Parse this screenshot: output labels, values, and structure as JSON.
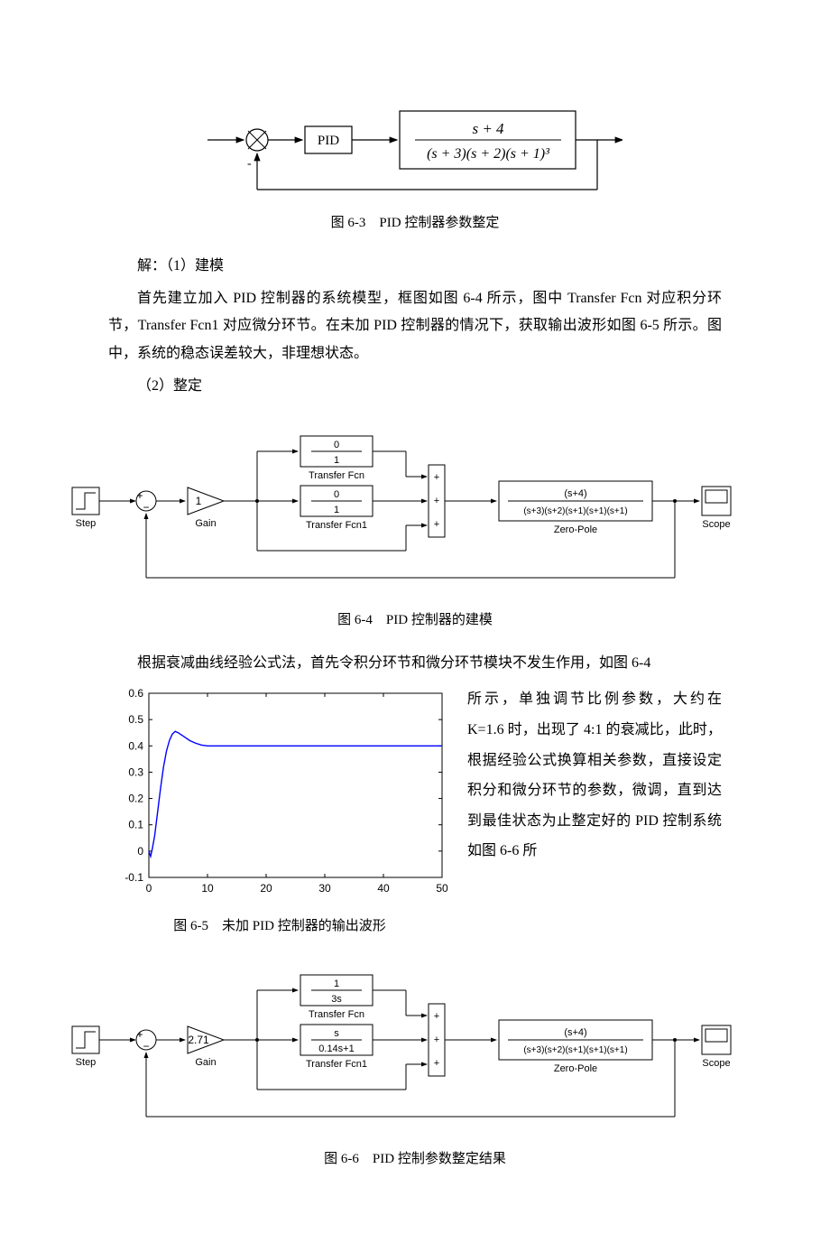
{
  "fig63": {
    "caption": "图 6-3　PID 控制器参数整定",
    "pid_label": "PID",
    "tf_num": "s + 4",
    "tf_den": "(s + 3)(s + 2)(s + 1)³",
    "minus": "-",
    "stroke": "#000000",
    "fill": "#ffffff"
  },
  "text": {
    "solve_header": "解：（1）建模",
    "p1": "首先建立加入 PID 控制器的系统模型，框图如图 6-4 所示，图中 Transfer Fcn 对应积分环节，Transfer Fcn1 对应微分环节。在未加 PID 控制器的情况下，获取输出波形如图 6-5 所示。图中，系统的稳态误差较大，非理想状态。",
    "step2": "（2）整定",
    "p2": "根据衰减曲线经验公式法，首先令积分环节和微分环节模块不发生作用，如图 6-4",
    "side": "所示，单独调节比例参数，大约在 K=1.6 时，出现了 4:1 的衰减比，此时，根据经验公式换算相关参数，直接设定积分和微分环节的参数，微调，直到达到最佳状态为止整定好的 PID 控制系统如图 6-6 所"
  },
  "fig64": {
    "caption": "图 6-4　PID 控制器的建模",
    "step_label": "Step",
    "gain_label": "Gain",
    "gain_val": "1",
    "tf1_num": "0",
    "tf1_den": "1",
    "tf1_label": "Transfer Fcn",
    "tf2_num": "0",
    "tf2_den": "1",
    "tf2_label": "Transfer Fcn1",
    "zp_num": "(s+4)",
    "zp_den": "(s+3)(s+2)(s+1)(s+1)(s+1)",
    "zp_label": "Zero-Pole",
    "scope_label": "Scope",
    "stroke": "#000000"
  },
  "fig65": {
    "caption": "图 6-5　未加 PID 控制器的输出波形",
    "xlim": [
      0,
      50
    ],
    "ylim": [
      -0.1,
      0.6
    ],
    "xticks": [
      0,
      10,
      20,
      30,
      40,
      50
    ],
    "yticks": [
      -0.1,
      0,
      0.1,
      0.2,
      0.3,
      0.4,
      0.5,
      0.6
    ],
    "line_color": "#0000ff",
    "axis_color": "#000000",
    "bg": "#ffffff",
    "data": [
      [
        0,
        0
      ],
      [
        0.3,
        -0.02
      ],
      [
        0.6,
        0.01
      ],
      [
        1,
        0.06
      ],
      [
        1.5,
        0.15
      ],
      [
        2,
        0.24
      ],
      [
        2.5,
        0.32
      ],
      [
        3,
        0.38
      ],
      [
        3.5,
        0.42
      ],
      [
        4,
        0.445
      ],
      [
        4.5,
        0.455
      ],
      [
        5,
        0.45
      ],
      [
        6,
        0.435
      ],
      [
        7,
        0.42
      ],
      [
        8,
        0.41
      ],
      [
        9,
        0.403
      ],
      [
        10,
        0.4
      ],
      [
        12,
        0.4
      ],
      [
        15,
        0.4
      ],
      [
        20,
        0.4
      ],
      [
        30,
        0.4
      ],
      [
        40,
        0.4
      ],
      [
        50,
        0.4
      ]
    ]
  },
  "fig66": {
    "caption": "图 6-6　PID 控制参数整定结果",
    "step_label": "Step",
    "gain_label": "Gain",
    "gain_val": "2.71",
    "tf1_num": "1",
    "tf1_den": "3s",
    "tf1_label": "Transfer Fcn",
    "tf2_num": "s",
    "tf2_den": "0.14s+1",
    "tf2_label": "Transfer Fcn1",
    "zp_num": "(s+4)",
    "zp_den": "(s+3)(s+2)(s+1)(s+1)(s+1)",
    "zp_label": "Zero-Pole",
    "scope_label": "Scope",
    "stroke": "#000000"
  }
}
